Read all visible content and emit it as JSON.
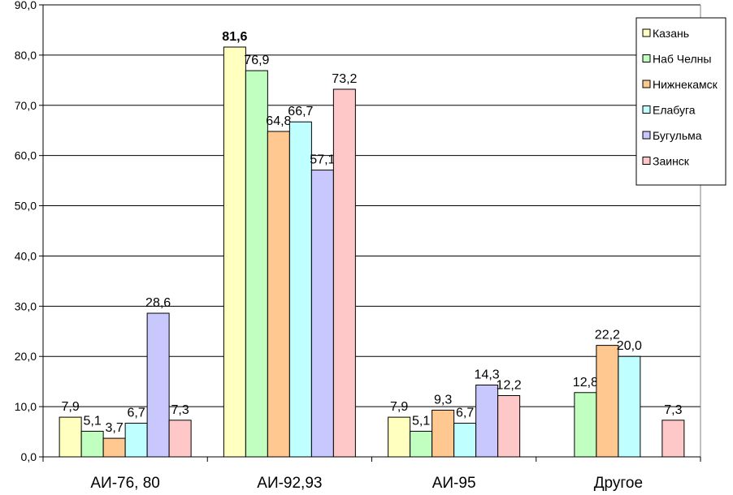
{
  "chart_data": {
    "type": "bar",
    "title": "",
    "xlabel": "",
    "ylabel": "",
    "ylim": [
      0,
      90
    ],
    "yticks": [
      "0,0",
      "10,0",
      "20,0",
      "30,0",
      "40,0",
      "50,0",
      "60,0",
      "70,0",
      "80,0",
      "90,0"
    ],
    "grid": true,
    "legend_position": "top-right",
    "categories": [
      "АИ-76, 80",
      "АИ-92,93",
      "АИ-95",
      "Другое"
    ],
    "series": [
      {
        "name": "Казань",
        "color": "#FFFFC0",
        "values": [
          7.9,
          81.6,
          7.9,
          null
        ],
        "labels": [
          "7,9",
          "81,6",
          "7,9",
          ""
        ]
      },
      {
        "name": "Наб Челны",
        "color": "#C0FFC0",
        "values": [
          5.1,
          76.9,
          5.1,
          12.8
        ],
        "labels": [
          "5,1",
          "76,9",
          "5,1",
          "12,8"
        ]
      },
      {
        "name": "Нижнекамск",
        "color": "#FFC890",
        "values": [
          3.7,
          64.8,
          9.3,
          22.2
        ],
        "labels": [
          "3,7",
          "64,8",
          "9,3",
          "22,2"
        ]
      },
      {
        "name": "Елабуга",
        "color": "#C0FFFF",
        "values": [
          6.7,
          66.7,
          6.7,
          20.0
        ],
        "labels": [
          "6,7",
          "66,7",
          "6,7",
          "20,0"
        ]
      },
      {
        "name": "Бугульма",
        "color": "#C8C8FF",
        "values": [
          28.6,
          57.1,
          14.3,
          null
        ],
        "labels": [
          "28,6",
          "57,1",
          "14,3",
          ""
        ]
      },
      {
        "name": "Заинск",
        "color": "#FFC8C8",
        "values": [
          7.3,
          73.2,
          12.2,
          7.3
        ],
        "labels": [
          "7,3",
          "73,2",
          "12,2",
          "7,3"
        ]
      }
    ]
  }
}
